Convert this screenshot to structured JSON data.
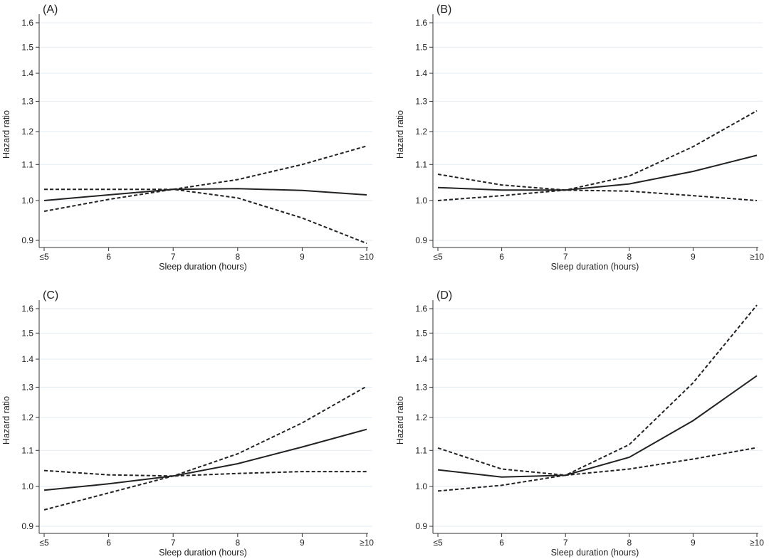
{
  "chart_data": [
    {
      "type": "line",
      "panel_label": "(A)",
      "xlabel": "Sleep duration (hours)",
      "ylabel": "Hazard ratio",
      "categories": [
        "≤5",
        "6",
        "7",
        "8",
        "9",
        "≥10"
      ],
      "ylim": [
        0.9,
        1.6
      ],
      "y_scale": "log",
      "y_ticks": [
        "0.9",
        "1.0",
        "1.1",
        "1.2",
        "1.3",
        "1.4",
        "1.5",
        "1.6"
      ],
      "grid": "horizontal",
      "series": [
        {
          "style": "solid",
          "values": [
            1.0,
            1.015,
            1.03,
            1.032,
            1.027,
            1.015
          ]
        },
        {
          "style": "dashed",
          "values": [
            0.972,
            1.003,
            1.03,
            1.057,
            1.1,
            1.155
          ]
        },
        {
          "style": "dashed",
          "values": [
            1.03,
            1.03,
            1.03,
            1.007,
            0.955,
            0.893
          ]
        }
      ]
    },
    {
      "type": "line",
      "panel_label": "(B)",
      "xlabel": "Sleep duration (hours)",
      "ylabel": "Hazard ratio",
      "categories": [
        "≤5",
        "6",
        "7",
        "8",
        "9",
        "≥10"
      ],
      "ylim": [
        0.9,
        1.6
      ],
      "y_scale": "log",
      "y_ticks": [
        "0.9",
        "1.0",
        "1.1",
        "1.2",
        "1.3",
        "1.4",
        "1.5",
        "1.6"
      ],
      "grid": "horizontal",
      "series": [
        {
          "style": "solid",
          "values": [
            1.035,
            1.028,
            1.028,
            1.045,
            1.08,
            1.127
          ]
        },
        {
          "style": "dashed",
          "values": [
            1.0,
            1.013,
            1.028,
            1.067,
            1.153,
            1.268
          ]
        },
        {
          "style": "dashed",
          "values": [
            1.072,
            1.042,
            1.028,
            1.025,
            1.013,
            1.0
          ]
        }
      ]
    },
    {
      "type": "line",
      "panel_label": "(C)",
      "xlabel": "Sleep duration (hours)",
      "ylabel": "Hazard ratio",
      "categories": [
        "≤5",
        "6",
        "7",
        "8",
        "9",
        "≥10"
      ],
      "ylim": [
        0.9,
        1.6
      ],
      "y_scale": "log",
      "y_ticks": [
        "0.9",
        "1.0",
        "1.1",
        "1.2",
        "1.3",
        "1.4",
        "1.5",
        "1.6"
      ],
      "grid": "horizontal",
      "series": [
        {
          "style": "solid",
          "values": [
            0.99,
            1.007,
            1.028,
            1.062,
            1.11,
            1.163
          ]
        },
        {
          "style": "dashed",
          "values": [
            0.94,
            0.983,
            1.028,
            1.09,
            1.183,
            1.303
          ]
        },
        {
          "style": "dashed",
          "values": [
            1.043,
            1.031,
            1.028,
            1.035,
            1.04,
            1.04
          ]
        }
      ]
    },
    {
      "type": "line",
      "panel_label": "(D)",
      "xlabel": "Sleep duration (hours)",
      "ylabel": "Hazard ratio",
      "categories": [
        "≤5",
        "6",
        "7",
        "8",
        "9",
        "≥10"
      ],
      "ylim": [
        0.9,
        1.6
      ],
      "y_scale": "log",
      "y_ticks": [
        "0.9",
        "1.0",
        "1.1",
        "1.2",
        "1.3",
        "1.4",
        "1.5",
        "1.6"
      ],
      "grid": "horizontal",
      "series": [
        {
          "style": "solid",
          "values": [
            1.045,
            1.025,
            1.03,
            1.08,
            1.19,
            1.34
          ]
        },
        {
          "style": "dashed",
          "values": [
            0.988,
            1.003,
            1.03,
            1.117,
            1.315,
            1.615
          ]
        },
        {
          "style": "dashed",
          "values": [
            1.107,
            1.047,
            1.03,
            1.047,
            1.075,
            1.108
          ]
        }
      ]
    }
  ]
}
